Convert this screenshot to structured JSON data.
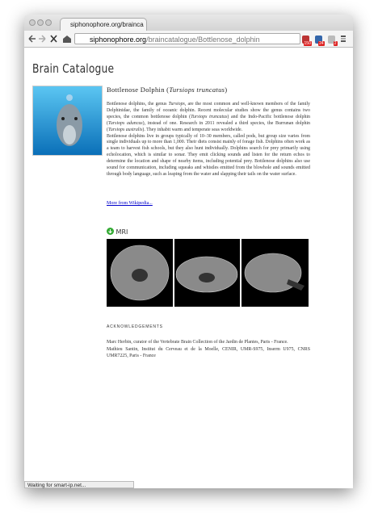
{
  "browser": {
    "tab_title": "siphonophore.org/brainca",
    "url_host": "siphonophore.org",
    "url_path": "/braincatalogue/Bottlenose_dolphin",
    "badges": [
      "150",
      "24",
      "2"
    ],
    "status": "Waiting for smart-ip.net..."
  },
  "page": {
    "site_title": "Brain Catalogue",
    "heading": [
      {
        "text": "Bottlenose Dolphin ("
      },
      {
        "text": "Tursiops truncatus",
        "italic": true
      },
      {
        "text": ")"
      }
    ],
    "paragraphs": [
      [
        {
          "text": "Bottlenose dolphins, the genus "
        },
        {
          "text": "Tursiops",
          "italic": true
        },
        {
          "text": ", are the most common and well-known members of the family Delphinidae, the family of oceanic dolphin. Recent molecular studies show the genus contains two species, the common bottlenose dolphin ("
        },
        {
          "text": "Tursiops truncatus",
          "italic": true
        },
        {
          "text": ") and the Indo-Pacific bottlenose dolphin ("
        },
        {
          "text": "Tursiops aduncus",
          "italic": true
        },
        {
          "text": "), instead of one. Research in 2011 revealed a third species, the Burrunan dolphin ("
        },
        {
          "text": "Tursiops australis",
          "italic": true
        },
        {
          "text": "). They inhabit warm and temperate seas worldwide."
        }
      ],
      [
        {
          "text": "Bottlenose dolphins live in groups typically of 10–30 members, called pods, but group size varies from single individuals up to more than 1,000. Their diets consist mainly of forage fish. Dolphins often work as a team to harvest fish schools, but they also hunt individually. Dolphins search for prey primarily using echolocation, which is similar to sonar. They emit clicking sounds and listen for the return echos to determine the location and shape of nearby items, including potential prey. Bottlenose dolphins also use sound for communication, including squeaks and whistles emitted from the blowhole and sounds emitted through body language, such as leaping from the water and slapping their tails on the water surface."
        }
      ]
    ],
    "more_link": "More from Wikipedia...",
    "mri_label": "MRI",
    "ack_title": "ACKNOWLEDGEMENTS",
    "ack_lines": [
      "Marc Herbin, curator of the Vertebrate Brain Collection of the Jardin de Plantes, Paris - France.",
      "Mathieu Santin, Institut du Cerveau et de la Moelle, CENIR, UMR-S975, Inserm U975, CNRS UMR7225, Paris - France"
    ]
  }
}
